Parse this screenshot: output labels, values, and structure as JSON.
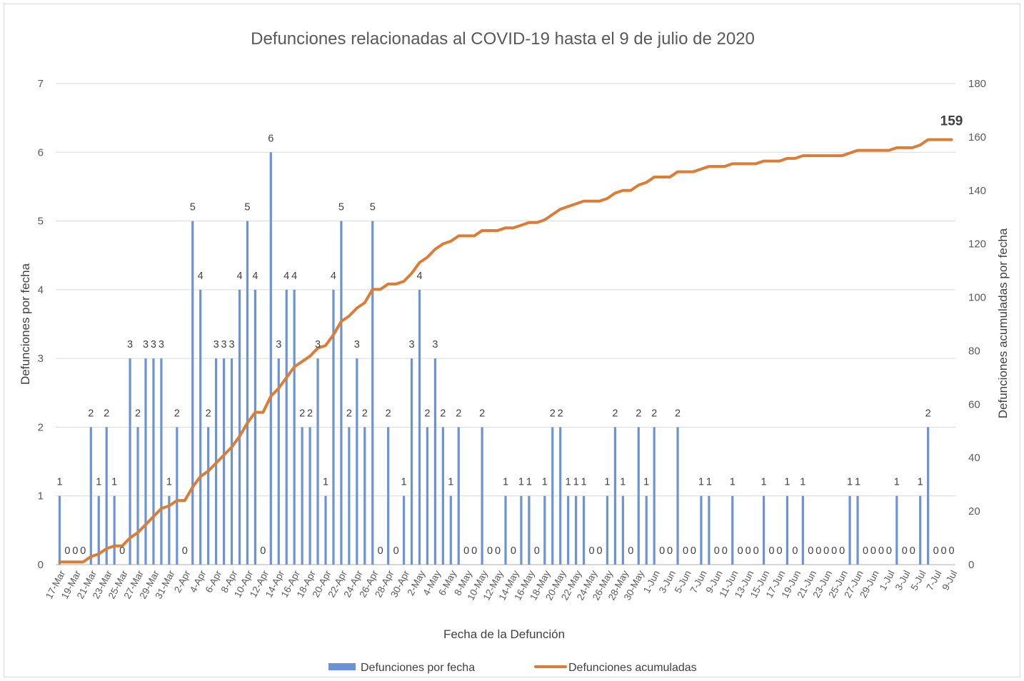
{
  "chart_data": {
    "type": "bar",
    "title": "Defunciones relacionadas al COVID-19 hasta el 9 de julio de 2020",
    "xlabel": "Fecha de la Defunción",
    "x_tick_labels": [
      "17-Mar",
      "19-Mar",
      "21-Mar",
      "23-Mar",
      "25-Mar",
      "27-Mar",
      "29-Mar",
      "31-Mar",
      "2-Apr",
      "4-Apr",
      "6-Apr",
      "8-Apr",
      "10-Apr",
      "12-Apr",
      "14-Apr",
      "16-Apr",
      "18-Apr",
      "20-Apr",
      "22-Apr",
      "24-Apr",
      "26-Apr",
      "28-Apr",
      "30-Apr",
      "2-May",
      "4-May",
      "6-May",
      "8-May",
      "10-May",
      "12-May",
      "14-May",
      "16-May",
      "18-May",
      "20-May",
      "22-May",
      "24-May",
      "26-May",
      "28-May",
      "30-May",
      "1-Jun",
      "3-Jun",
      "5-Jun",
      "7-Jun",
      "9-Jun",
      "11-Jun",
      "13-Jun",
      "15-Jun",
      "17-Jun",
      "19-Jun",
      "21-Jun",
      "23-Jun",
      "25-Jun",
      "27-Jun",
      "29-Jun",
      "1-Jul",
      "3-Jul",
      "5-Jul",
      "7-Jul",
      "9-Jul"
    ],
    "y_left": {
      "label": "Defunciones por fecha",
      "min": 0,
      "max": 7,
      "ticks": [
        0,
        1,
        2,
        3,
        4,
        5,
        6,
        7
      ]
    },
    "y_right": {
      "label": "Defunciones acumuladas por fecha",
      "min": 0,
      "max": 180,
      "ticks": [
        0,
        20,
        40,
        60,
        80,
        100,
        120,
        140,
        160,
        180
      ]
    },
    "series": [
      {
        "name": "Defunciones por fecha",
        "chart_type": "bar",
        "secondary_axis": false,
        "color": "#6C93D3",
        "data_labels": true,
        "values": [
          1,
          0,
          0,
          0,
          2,
          1,
          2,
          1,
          0,
          3,
          2,
          3,
          3,
          3,
          1,
          2,
          0,
          5,
          4,
          2,
          3,
          3,
          3,
          4,
          5,
          4,
          0,
          6,
          3,
          4,
          4,
          2,
          2,
          3,
          1,
          4,
          5,
          2,
          3,
          2,
          5,
          0,
          2,
          0,
          1,
          3,
          4,
          2,
          3,
          2,
          1,
          2,
          0,
          0,
          2,
          0,
          0,
          1,
          0,
          1,
          1,
          0,
          1,
          2,
          2,
          1,
          1,
          1,
          0,
          0,
          1,
          2,
          1,
          0,
          2,
          1,
          2,
          0,
          0,
          2,
          0,
          0,
          1,
          1,
          0,
          0,
          1,
          0,
          0,
          0,
          1,
          0,
          0,
          1,
          0,
          1,
          0,
          0,
          0,
          0,
          0,
          1,
          1,
          0,
          0,
          0,
          0,
          1,
          0,
          0,
          1,
          2,
          0,
          0,
          0
        ]
      },
      {
        "name": "Defunciones acumuladas",
        "chart_type": "line",
        "secondary_axis": true,
        "color": "#DB7D36",
        "label_last_point": true,
        "values": [
          1,
          1,
          1,
          1,
          3,
          4,
          6,
          7,
          7,
          10,
          12,
          15,
          18,
          21,
          22,
          24,
          24,
          29,
          33,
          35,
          38,
          41,
          44,
          48,
          53,
          57,
          57,
          63,
          66,
          70,
          74,
          76,
          78,
          81,
          82,
          86,
          91,
          93,
          96,
          98,
          103,
          103,
          105,
          105,
          106,
          109,
          113,
          115,
          118,
          120,
          121,
          123,
          123,
          123,
          125,
          125,
          125,
          126,
          126,
          127,
          128,
          128,
          129,
          131,
          133,
          134,
          135,
          136,
          136,
          136,
          137,
          139,
          140,
          140,
          142,
          143,
          145,
          145,
          145,
          147,
          147,
          147,
          148,
          149,
          149,
          149,
          150,
          150,
          150,
          150,
          151,
          151,
          151,
          152,
          152,
          153,
          153,
          153,
          153,
          153,
          153,
          154,
          155,
          155,
          155,
          155,
          155,
          156,
          156,
          156,
          157,
          159,
          159,
          159,
          159
        ]
      }
    ],
    "grid": true,
    "legend": "bottom"
  }
}
